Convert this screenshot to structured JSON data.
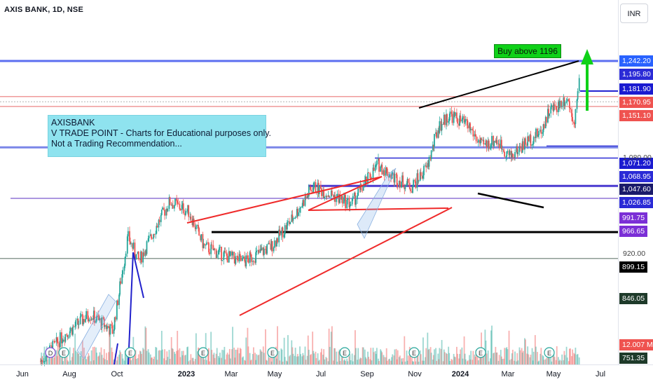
{
  "header": {
    "symbol_title": "AXIS BANK, 1D, NSE",
    "currency_button": "INR"
  },
  "annotations": {
    "note_lines": [
      "AXISBANK",
      "V TRADE POINT - Charts for Educational purposes only.",
      "Not a Trading Recommendation..."
    ],
    "buy_label": "Buy above 1196"
  },
  "price_axis": {
    "tags": [
      {
        "label": "1,242.20",
        "color": "#2962ff"
      },
      {
        "label": "1,195.80",
        "color": "#2b2bd6"
      },
      {
        "label": "1,181.90",
        "color": "#1b1bd0"
      },
      {
        "label": "1,170.95",
        "color": "#ef5350"
      },
      {
        "label": "1,151.10",
        "color": "#ef5350"
      },
      {
        "label": "1,071.20",
        "color": "#1b1bd0"
      },
      {
        "label": "1,068.95",
        "color": "#2b2bd6"
      },
      {
        "label": "1,047.60",
        "color": "#1a1a6a"
      },
      {
        "label": "1,026.85",
        "color": "#2b2bd6"
      },
      {
        "label": "991.75",
        "color": "#7b2fd6"
      },
      {
        "label": "966.65",
        "color": "#7b2fd6"
      },
      {
        "label": "899.15",
        "color": "#000000"
      },
      {
        "label": "846.05",
        "color": "#1e3a2a"
      },
      {
        "label": "12.007 M",
        "color": "#ef5350"
      },
      {
        "label": "751.35",
        "color": "#1e3a2a"
      }
    ],
    "plain_ticks": [
      "1,080.00",
      "920.00"
    ]
  },
  "time_axis": {
    "labels": [
      "Jun",
      "Aug",
      "Oct",
      "2023",
      "Mar",
      "May",
      "Jul",
      "Sep",
      "Nov",
      "2024",
      "Mar",
      "May",
      "Jul"
    ]
  },
  "chart_data": {
    "type": "candlestick",
    "title": "AXIS BANK, 1D, NSE",
    "currency": "INR",
    "x_range": [
      "2022-06",
      "2024-07"
    ],
    "y_range": [
      740,
      1260
    ],
    "horizontal_levels": [
      1242.2,
      1195.8,
      1181.9,
      1170.95,
      1151.1,
      1071.2,
      1068.95,
      1047.6,
      1026.85,
      991.75,
      966.65,
      899.15,
      846.05,
      751.35
    ],
    "approx_close_path": [
      {
        "date": "2022-06-20",
        "close": 640
      },
      {
        "date": "2022-07-20",
        "close": 690
      },
      {
        "date": "2022-08-25",
        "close": 735
      },
      {
        "date": "2022-09-25",
        "close": 700
      },
      {
        "date": "2022-10-15",
        "close": 890
      },
      {
        "date": "2022-10-30",
        "close": 840
      },
      {
        "date": "2022-11-20",
        "close": 905
      },
      {
        "date": "2022-12-10",
        "close": 960
      },
      {
        "date": "2023-01-05",
        "close": 940
      },
      {
        "date": "2023-01-25",
        "close": 870
      },
      {
        "date": "2023-02-25",
        "close": 850
      },
      {
        "date": "2023-03-20",
        "close": 840
      },
      {
        "date": "2023-04-25",
        "close": 870
      },
      {
        "date": "2023-05-25",
        "close": 930
      },
      {
        "date": "2023-06-20",
        "close": 990
      },
      {
        "date": "2023-07-20",
        "close": 970
      },
      {
        "date": "2023-08-10",
        "close": 955
      },
      {
        "date": "2023-08-30",
        "close": 1000
      },
      {
        "date": "2023-09-15",
        "close": 1035
      },
      {
        "date": "2023-10-05",
        "close": 1010
      },
      {
        "date": "2023-10-30",
        "close": 990
      },
      {
        "date": "2023-11-20",
        "close": 1030
      },
      {
        "date": "2023-12-05",
        "close": 1110
      },
      {
        "date": "2023-12-20",
        "close": 1135
      },
      {
        "date": "2024-01-15",
        "close": 1110
      },
      {
        "date": "2024-02-01",
        "close": 1070
      },
      {
        "date": "2024-02-20",
        "close": 1085
      },
      {
        "date": "2024-03-10",
        "close": 1050
      },
      {
        "date": "2024-04-01",
        "close": 1080
      },
      {
        "date": "2024-04-20",
        "close": 1100
      },
      {
        "date": "2024-04-30",
        "close": 1140
      },
      {
        "date": "2024-05-10",
        "close": 1150
      },
      {
        "date": "2024-05-25",
        "close": 1170
      },
      {
        "date": "2024-06-04",
        "close": 1120
      },
      {
        "date": "2024-06-10",
        "close": 1195
      }
    ],
    "volume_last": "12.007 M"
  }
}
